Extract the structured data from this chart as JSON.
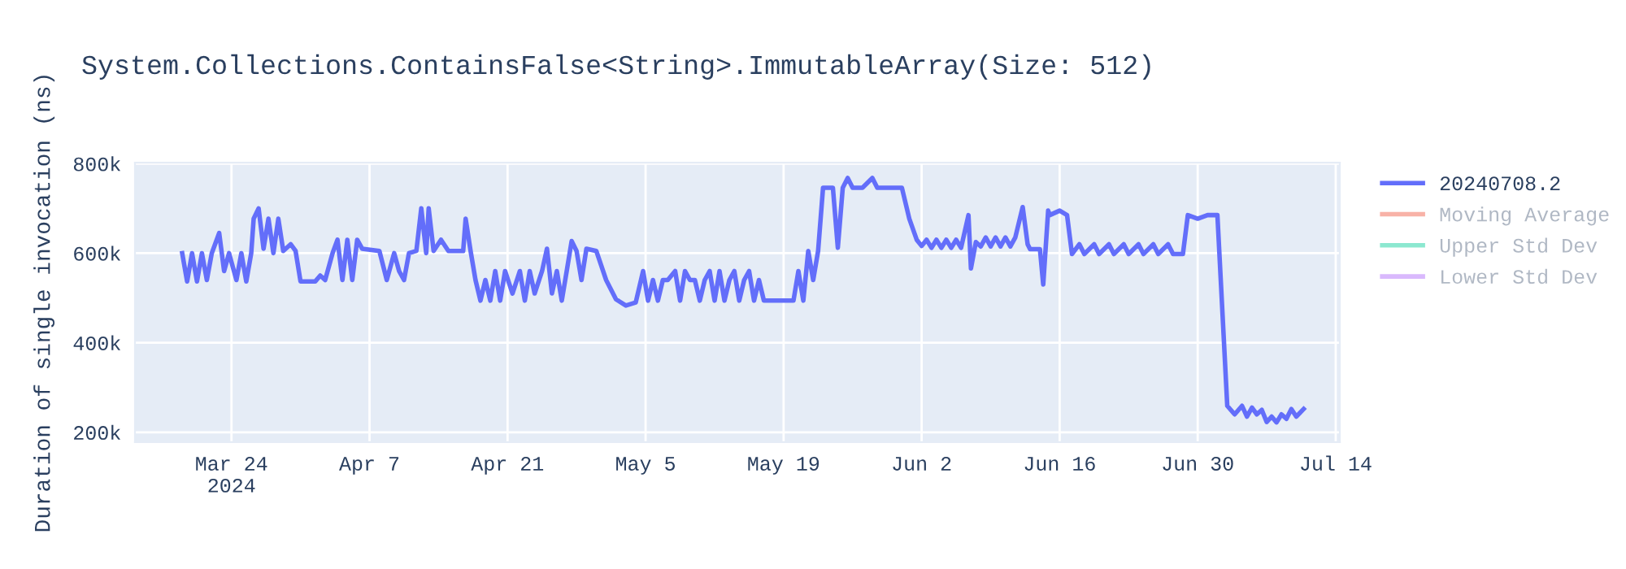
{
  "chart_data": {
    "type": "line",
    "title": "System.Collections.ContainsFalse<String>.ImmutableArray(Size: 512)",
    "ylabel": "Duration of single invocation (ns)",
    "x": [
      "2024-03-19T00:00",
      "2024-03-19T12:00",
      "2024-03-20T00:00",
      "2024-03-20T12:00",
      "2024-03-21T00:00",
      "2024-03-21T12:00",
      "2024-03-22T00:00",
      "2024-03-22T18:00",
      "2024-03-23T06:00",
      "2024-03-23T18:00",
      "2024-03-24T12:00",
      "2024-03-25T00:00",
      "2024-03-25T12:00",
      "2024-03-26T00:00",
      "2024-03-26T06:00",
      "2024-03-26T18:00",
      "2024-03-27T06:00",
      "2024-03-27T18:00",
      "2024-03-28T06:00",
      "2024-03-28T18:00",
      "2024-03-29T06:00",
      "2024-03-30T00:00",
      "2024-03-30T12:00",
      "2024-03-31T00:00",
      "2024-04-01T12:00",
      "2024-04-02T00:00",
      "2024-04-02T12:00",
      "2024-04-03T06:00",
      "2024-04-03T18:00",
      "2024-04-04T06:00",
      "2024-04-04T18:00",
      "2024-04-05T06:00",
      "2024-04-05T18:00",
      "2024-04-06T06:00",
      "2024-04-08T00:00",
      "2024-04-08T18:00",
      "2024-04-09T12:00",
      "2024-04-10T00:00",
      "2024-04-10T12:00",
      "2024-04-11T00:00",
      "2024-04-11T18:00",
      "2024-04-12T06:00",
      "2024-04-12T18:00",
      "2024-04-13T00:00",
      "2024-04-13T12:00",
      "2024-04-14T06:00",
      "2024-04-15T00:00",
      "2024-04-16T12:00",
      "2024-04-16T18:00",
      "2024-04-17T06:00",
      "2024-04-17T18:00",
      "2024-04-18T06:00",
      "2024-04-18T18:00",
      "2024-04-19T06:00",
      "2024-04-19T18:00",
      "2024-04-20T06:00",
      "2024-04-20T18:00",
      "2024-04-21T12:00",
      "2024-04-22T06:00",
      "2024-04-22T18:00",
      "2024-04-23T06:00",
      "2024-04-23T18:00",
      "2024-04-24T12:00",
      "2024-04-25T00:00",
      "2024-04-25T12:00",
      "2024-04-26T00:00",
      "2024-04-26T12:00",
      "2024-04-27T00:00",
      "2024-04-27T12:00",
      "2024-04-28T00:00",
      "2024-04-28T12:00",
      "2024-04-29T00:00",
      "2024-04-30T00:00",
      "2024-05-01T00:00",
      "2024-05-02T00:00",
      "2024-05-03T00:00",
      "2024-05-04T00:00",
      "2024-05-04T18:00",
      "2024-05-05T06:00",
      "2024-05-05T18:00",
      "2024-05-06T06:00",
      "2024-05-06T18:00",
      "2024-05-07T06:00",
      "2024-05-08T00:00",
      "2024-05-08T12:00",
      "2024-05-09T00:00",
      "2024-05-09T12:00",
      "2024-05-10T00:00",
      "2024-05-10T12:00",
      "2024-05-11T00:00",
      "2024-05-11T12:00",
      "2024-05-12T00:00",
      "2024-05-12T12:00",
      "2024-05-13T00:00",
      "2024-05-13T12:00",
      "2024-05-14T00:00",
      "2024-05-14T12:00",
      "2024-05-15T00:00",
      "2024-05-15T12:00",
      "2024-05-16T00:00",
      "2024-05-16T12:00",
      "2024-05-17T00:00",
      "2024-05-18T00:00",
      "2024-05-19T00:00",
      "2024-05-20T00:00",
      "2024-05-20T12:00",
      "2024-05-21T00:00",
      "2024-05-21T12:00",
      "2024-05-22T00:00",
      "2024-05-22T12:00",
      "2024-05-23T00:00",
      "2024-05-24T00:00",
      "2024-05-24T12:00",
      "2024-05-25T00:00",
      "2024-05-25T12:00",
      "2024-05-26T00:00",
      "2024-05-27T00:00",
      "2024-05-28T00:00",
      "2024-05-28T12:00",
      "2024-05-31T00:00",
      "2024-05-31T18:00",
      "2024-06-01T12:00",
      "2024-06-02T00:00",
      "2024-06-02T12:00",
      "2024-06-03T00:00",
      "2024-06-03T12:00",
      "2024-06-04T00:00",
      "2024-06-04T12:00",
      "2024-06-05T00:00",
      "2024-06-05T12:00",
      "2024-06-06T00:00",
      "2024-06-06T18:00",
      "2024-06-07T00:00",
      "2024-06-07T12:00",
      "2024-06-08T00:00",
      "2024-06-08T12:00",
      "2024-06-09T00:00",
      "2024-06-09T12:00",
      "2024-06-10T00:00",
      "2024-06-10T12:00",
      "2024-06-11T00:00",
      "2024-06-11T12:00",
      "2024-06-12T06:00",
      "2024-06-12T18:00",
      "2024-06-13T00:00",
      "2024-06-14T00:00",
      "2024-06-14T08:00",
      "2024-06-14T20:00",
      "2024-06-15T00:00",
      "2024-06-16T00:00",
      "2024-06-16T18:00",
      "2024-06-17T06:00",
      "2024-06-18T00:00",
      "2024-06-18T12:00",
      "2024-06-19T12:00",
      "2024-06-20T00:00",
      "2024-06-21T00:00",
      "2024-06-21T12:00",
      "2024-06-22T12:00",
      "2024-06-23T00:00",
      "2024-06-24T00:00",
      "2024-06-24T12:00",
      "2024-06-25T12:00",
      "2024-06-26T00:00",
      "2024-06-27T00:00",
      "2024-06-27T12:00",
      "2024-06-28T12:00",
      "2024-06-29T00:00",
      "2024-06-30T00:00",
      "2024-07-01T00:00",
      "2024-07-02T00:00",
      "2024-07-03T00:00",
      "2024-07-03T18:00",
      "2024-07-04T12:00",
      "2024-07-05T00:00",
      "2024-07-05T12:00",
      "2024-07-06T00:00",
      "2024-07-06T12:00",
      "2024-07-07T00:00",
      "2024-07-07T12:00",
      "2024-07-08T00:00",
      "2024-07-08T12:00",
      "2024-07-09T00:00",
      "2024-07-09T12:00",
      "2024-07-10T00:00",
      "2024-07-10T18:00"
    ],
    "series": [
      {
        "name": "20240708.2",
        "color": "#636efa",
        "values": [
          600000,
          537000,
          600000,
          537000,
          600000,
          540000,
          600000,
          645000,
          560000,
          600000,
          540000,
          600000,
          537000,
          600000,
          677000,
          700000,
          610000,
          677000,
          600000,
          677000,
          605000,
          620000,
          605000,
          537000,
          537000,
          550000,
          540000,
          600000,
          630000,
          540000,
          630000,
          540000,
          630000,
          610000,
          605000,
          540000,
          600000,
          560000,
          540000,
          600000,
          605000,
          700000,
          600000,
          700000,
          605000,
          630000,
          605000,
          605000,
          677000,
          605000,
          540000,
          494000,
          540000,
          494000,
          560000,
          494000,
          560000,
          510000,
          560000,
          494000,
          560000,
          510000,
          560000,
          610000,
          510000,
          560000,
          494000,
          560000,
          627000,
          605000,
          540000,
          610000,
          605000,
          540000,
          497000,
          483000,
          490000,
          560000,
          494000,
          540000,
          494000,
          540000,
          540000,
          560000,
          494000,
          560000,
          540000,
          540000,
          494000,
          540000,
          560000,
          494000,
          560000,
          494000,
          540000,
          560000,
          494000,
          540000,
          560000,
          494000,
          540000,
          494000,
          494000,
          494000,
          494000,
          560000,
          494000,
          605000,
          540000,
          605000,
          746000,
          746000,
          612000,
          746000,
          768000,
          746000,
          746000,
          768000,
          746000,
          746000,
          677000,
          630000,
          616000,
          630000,
          612000,
          630000,
          612000,
          630000,
          612000,
          630000,
          612000,
          685000,
          566000,
          625000,
          615000,
          635000,
          615000,
          635000,
          615000,
          635000,
          615000,
          635000,
          703000,
          620000,
          609000,
          609000,
          530000,
          695000,
          685000,
          695000,
          685000,
          598000,
          620000,
          598000,
          620000,
          598000,
          620000,
          598000,
          620000,
          598000,
          620000,
          598000,
          620000,
          598000,
          620000,
          598000,
          598000,
          685000,
          677000,
          685000,
          685000,
          259000,
          240000,
          259000,
          235000,
          255000,
          240000,
          250000,
          223000,
          235000,
          222000,
          240000,
          230000,
          252000,
          235000,
          252000
        ]
      },
      {
        "name": "Moving Average",
        "color": "#ef553b",
        "values": [
          null,
          null,
          null,
          null,
          null,
          null,
          null,
          null,
          null,
          null,
          null,
          null,
          null,
          null,
          null,
          null,
          null,
          null,
          null,
          null,
          null,
          null,
          null,
          null,
          null,
          null,
          null,
          null,
          null,
          null,
          null,
          null,
          null,
          null,
          null,
          null,
          null,
          null,
          null,
          null,
          null,
          null,
          null,
          null,
          null,
          null,
          null,
          null,
          null,
          null,
          null,
          null,
          null,
          null,
          null,
          null,
          null,
          null,
          null,
          null,
          null,
          null,
          null,
          null,
          null,
          null,
          null,
          null,
          null,
          null,
          null,
          null,
          null,
          null,
          null,
          null,
          null,
          null,
          null,
          null,
          null,
          null,
          null,
          null,
          null,
          null,
          null,
          null,
          null,
          null,
          null,
          null,
          null,
          null,
          null,
          null,
          null,
          null,
          null,
          null,
          null,
          null,
          null,
          null,
          null,
          null,
          null,
          null,
          null,
          null,
          null,
          null,
          null,
          null,
          null,
          null,
          null,
          null,
          null,
          null,
          null,
          null,
          null,
          null,
          null,
          null,
          null,
          null,
          null,
          null,
          null,
          null,
          null,
          null,
          null,
          null,
          null,
          null,
          null,
          null,
          null,
          null,
          null,
          null,
          null,
          null,
          null,
          null,
          null,
          null,
          null,
          null,
          null,
          null,
          null,
          null,
          null,
          null,
          null,
          null,
          null,
          null,
          null,
          null,
          null,
          null,
          null,
          null,
          null,
          null,
          null,
          null,
          null,
          null,
          null,
          null,
          null,
          null,
          null,
          null,
          null,
          null,
          null,
          null,
          null,
          null
        ]
      },
      {
        "name": "Upper Std Dev",
        "color": "#00cc96",
        "values": [
          null,
          null,
          null,
          null,
          null,
          null,
          null,
          null,
          null,
          null,
          null,
          null,
          null,
          null,
          null,
          null,
          null,
          null,
          null,
          null,
          null,
          null,
          null,
          null,
          null,
          null,
          null,
          null,
          null,
          null,
          null,
          null,
          null,
          null,
          null,
          null,
          null,
          null,
          null,
          null,
          null,
          null,
          null,
          null,
          null,
          null,
          null,
          null,
          null,
          null,
          null,
          null,
          null,
          null,
          null,
          null,
          null,
          null,
          null,
          null,
          null,
          null,
          null,
          null,
          null,
          null,
          null,
          null,
          null,
          null,
          null,
          null,
          null,
          null,
          null,
          null,
          null,
          null,
          null,
          null,
          null,
          null,
          null,
          null,
          null,
          null,
          null,
          null,
          null,
          null,
          null,
          null,
          null,
          null,
          null,
          null,
          null,
          null,
          null,
          null,
          null,
          null,
          null,
          null,
          null,
          null,
          null,
          null,
          null,
          null,
          null,
          null,
          null,
          null,
          null,
          null,
          null,
          null,
          null,
          null,
          null,
          null,
          null,
          null,
          null,
          null,
          null,
          null,
          null,
          null,
          null,
          null,
          null,
          null,
          null,
          null,
          null,
          null,
          null,
          null,
          null,
          null,
          null,
          null,
          null,
          null,
          null,
          null,
          null,
          null,
          null,
          null,
          null,
          null,
          null,
          null,
          null,
          null,
          null,
          null,
          null,
          null,
          null,
          null,
          null,
          null,
          null,
          null,
          null,
          null,
          null,
          null,
          null,
          null,
          null,
          null,
          null,
          null,
          null,
          null,
          null,
          null,
          null,
          null,
          null,
          null
        ]
      },
      {
        "name": "Lower Std Dev",
        "color": "#ab63fa",
        "values": [
          null,
          null,
          null,
          null,
          null,
          null,
          null,
          null,
          null,
          null,
          null,
          null,
          null,
          null,
          null,
          null,
          null,
          null,
          null,
          null,
          null,
          null,
          null,
          null,
          null,
          null,
          null,
          null,
          null,
          null,
          null,
          null,
          null,
          null,
          null,
          null,
          null,
          null,
          null,
          null,
          null,
          null,
          null,
          null,
          null,
          null,
          null,
          null,
          null,
          null,
          null,
          null,
          null,
          null,
          null,
          null,
          null,
          null,
          null,
          null,
          null,
          null,
          null,
          null,
          null,
          null,
          null,
          null,
          null,
          null,
          null,
          null,
          null,
          null,
          null,
          null,
          null,
          null,
          null,
          null,
          null,
          null,
          null,
          null,
          null,
          null,
          null,
          null,
          null,
          null,
          null,
          null,
          null,
          null,
          null,
          null,
          null,
          null,
          null,
          null,
          null,
          null,
          null,
          null,
          null,
          null,
          null,
          null,
          null,
          null,
          null,
          null,
          null,
          null,
          null,
          null,
          null,
          null,
          null,
          null,
          null,
          null,
          null,
          null,
          null,
          null,
          null,
          null,
          null,
          null,
          null,
          null,
          null,
          null,
          null,
          null,
          null,
          null,
          null,
          null,
          null,
          null,
          null,
          null,
          null,
          null,
          null,
          null,
          null,
          null,
          null,
          null,
          null,
          null,
          null,
          null,
          null,
          null,
          null,
          null,
          null,
          null,
          null,
          null,
          null,
          null,
          null,
          null,
          null,
          null,
          null,
          null,
          null,
          null,
          null,
          null,
          null,
          null,
          null,
          null,
          null,
          null,
          null,
          null,
          null,
          null
        ]
      }
    ],
    "xlim": [
      "2024-03-14T05:00",
      "2024-07-14T10:00"
    ],
    "xticks": [
      {
        "value": "2024-03-24",
        "label": "Mar 24\n2024"
      },
      {
        "value": "2024-04-07",
        "label": "Apr 7"
      },
      {
        "value": "2024-04-21",
        "label": "Apr 21"
      },
      {
        "value": "2024-05-05",
        "label": "May 5"
      },
      {
        "value": "2024-05-19",
        "label": "May 19"
      },
      {
        "value": "2024-06-02",
        "label": "Jun 2"
      },
      {
        "value": "2024-06-16",
        "label": "Jun 16"
      },
      {
        "value": "2024-06-30",
        "label": "Jun 30"
      },
      {
        "value": "2024-07-14",
        "label": "Jul 14"
      }
    ],
    "ylim": [
      178000,
      802000
    ],
    "yticks": [
      {
        "value": 200000,
        "label": "200k"
      },
      {
        "value": 400000,
        "label": "400k"
      },
      {
        "value": 600000,
        "label": "600k"
      },
      {
        "value": 800000,
        "label": "800k"
      }
    ],
    "grid": true,
    "legend": "top right"
  }
}
